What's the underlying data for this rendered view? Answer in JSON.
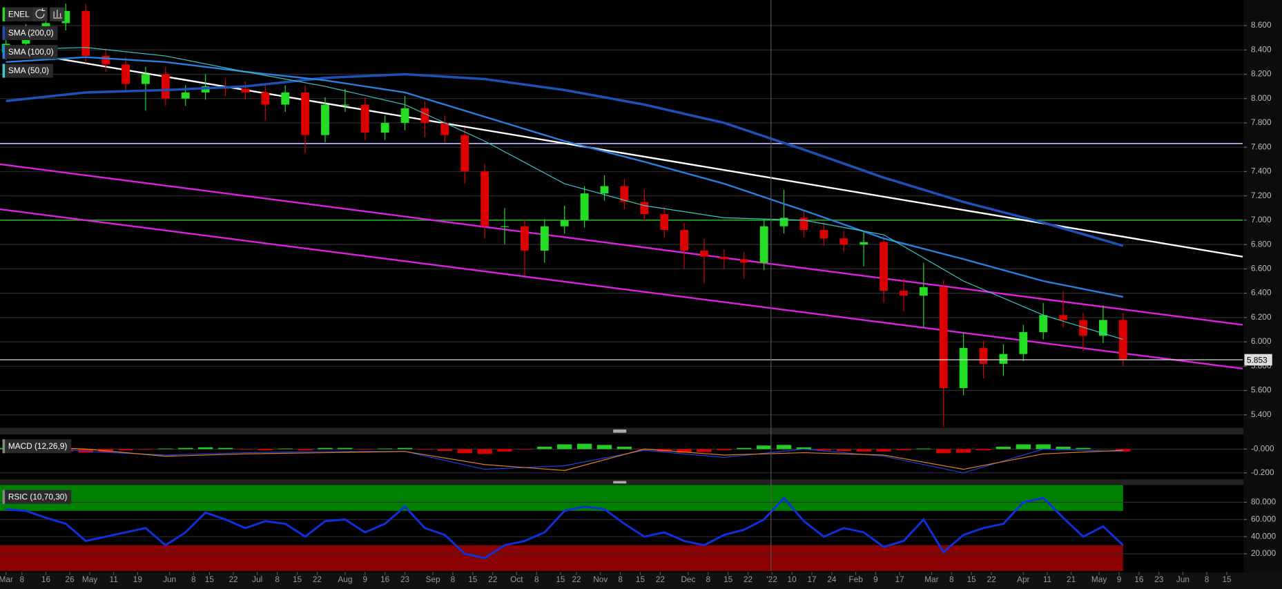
{
  "chart_data": [
    {
      "type": "candlestick",
      "name": "ENEL",
      "up_color": "#22dd22",
      "down_color": "#dd0000",
      "x": [
        0,
        5,
        10,
        15,
        20,
        25,
        30,
        35,
        40,
        45,
        50,
        55,
        60,
        65,
        70,
        75,
        80,
        85,
        90,
        95,
        100,
        105,
        110,
        115,
        120,
        125,
        130,
        135,
        140,
        145,
        150,
        155,
        160,
        165,
        170,
        175,
        180,
        185,
        190,
        195,
        200,
        205,
        210,
        215,
        220,
        225,
        230,
        235,
        240,
        245,
        250,
        255,
        260,
        265,
        270,
        275,
        280
      ],
      "open": [
        8.38,
        8.45,
        8.55,
        8.62,
        8.72,
        8.35,
        8.28,
        8.12,
        8.2,
        8.0,
        8.05,
        8.1,
        8.08,
        8.05,
        7.95,
        8.05,
        7.7,
        7.95,
        7.95,
        7.72,
        7.8,
        7.92,
        7.8,
        7.7,
        7.4,
        6.95,
        6.95,
        6.75,
        6.95,
        7.0,
        7.22,
        7.28,
        7.15,
        7.05,
        6.92,
        6.75,
        6.7,
        6.68,
        6.65,
        6.95,
        7.02,
        6.92,
        6.85,
        6.8,
        6.82,
        6.42,
        6.38,
        6.45,
        5.62,
        5.95,
        5.82,
        5.9,
        6.08,
        6.22,
        6.18,
        6.05,
        6.18
      ],
      "high": [
        8.51,
        8.61,
        8.68,
        8.78,
        8.78,
        8.41,
        8.34,
        8.26,
        8.26,
        8.11,
        8.2,
        8.16,
        8.14,
        8.11,
        8.11,
        8.11,
        8.01,
        8.08,
        8.01,
        7.86,
        8.02,
        7.98,
        7.86,
        7.76,
        7.46,
        7.1,
        7.01,
        7.01,
        7.12,
        7.28,
        7.37,
        7.34,
        7.25,
        7.11,
        6.98,
        6.85,
        6.76,
        6.74,
        7.01,
        7.25,
        7.08,
        6.98,
        6.91,
        6.9,
        6.88,
        6.52,
        6.65,
        6.51,
        6.08,
        6.01,
        5.98,
        6.14,
        6.32,
        6.42,
        6.24,
        6.3,
        6.24
      ],
      "low": [
        8.32,
        8.39,
        8.49,
        8.56,
        8.29,
        8.22,
        8.06,
        7.9,
        7.94,
        7.94,
        7.99,
        8.02,
        7.99,
        7.82,
        7.89,
        7.55,
        7.64,
        7.89,
        7.66,
        7.66,
        7.74,
        7.68,
        7.64,
        7.3,
        6.85,
        6.8,
        6.55,
        6.65,
        6.89,
        6.94,
        7.16,
        7.09,
        6.99,
        6.86,
        6.6,
        6.48,
        6.6,
        6.52,
        6.59,
        6.89,
        6.86,
        6.79,
        6.74,
        6.62,
        6.32,
        6.25,
        6.12,
        5.3,
        5.56,
        5.7,
        5.72,
        5.84,
        6.02,
        6.12,
        5.92,
        5.99,
        5.8
      ],
      "close": [
        8.45,
        8.55,
        8.62,
        8.72,
        8.35,
        8.28,
        8.12,
        8.2,
        8.0,
        8.05,
        8.1,
        8.08,
        8.05,
        7.95,
        8.05,
        7.7,
        7.95,
        7.95,
        7.72,
        7.8,
        7.92,
        7.8,
        7.7,
        7.4,
        6.95,
        6.95,
        6.75,
        6.95,
        7.0,
        7.22,
        7.28,
        7.15,
        7.05,
        6.92,
        6.75,
        6.7,
        6.68,
        6.65,
        6.95,
        7.02,
        6.92,
        6.85,
        6.8,
        6.82,
        6.42,
        6.38,
        6.45,
        5.62,
        5.95,
        5.82,
        5.9,
        6.08,
        6.22,
        6.18,
        6.05,
        6.18,
        5.85
      ],
      "series": [
        {
          "name": "SMA (200,0)",
          "color": "#1e50b8",
          "width": 3,
          "x": [
            0,
            20,
            40,
            60,
            80,
            100,
            120,
            140,
            160,
            180,
            200,
            220,
            240,
            260,
            280
          ],
          "values": [
            7.98,
            8.05,
            8.07,
            8.1,
            8.17,
            8.2,
            8.16,
            8.07,
            7.95,
            7.8,
            7.58,
            7.35,
            7.15,
            6.98,
            6.79
          ]
        },
        {
          "name": "SMA (100,0)",
          "color": "#2a80e0",
          "width": 2,
          "x": [
            0,
            20,
            40,
            60,
            80,
            100,
            120,
            140,
            160,
            180,
            200,
            220,
            240,
            260,
            280
          ],
          "values": [
            8.3,
            8.34,
            8.3,
            8.22,
            8.15,
            8.05,
            7.85,
            7.65,
            7.48,
            7.3,
            7.08,
            6.85,
            6.68,
            6.5,
            6.37
          ]
        },
        {
          "name": "SMA (50,0)",
          "color": "#3cc8c8",
          "width": 1,
          "x": [
            0,
            20,
            40,
            60,
            80,
            100,
            120,
            140,
            160,
            180,
            200,
            220,
            240,
            260,
            280
          ],
          "values": [
            8.4,
            8.42,
            8.35,
            8.22,
            8.1,
            7.95,
            7.65,
            7.3,
            7.12,
            7.02,
            7.0,
            6.88,
            6.5,
            6.22,
            6.02
          ]
        }
      ],
      "trend_lines": [
        {
          "color": "#ffffff",
          "x": [
            10.8,
            310
          ],
          "y": [
            8.34,
            6.7
          ]
        },
        {
          "color": "#e020e0",
          "x": [
            -1.5,
            310
          ],
          "y": [
            7.46,
            6.14
          ]
        },
        {
          "color": "#e020e0",
          "x": [
            -1.5,
            310
          ],
          "y": [
            7.09,
            5.78
          ]
        }
      ],
      "hlines": [
        {
          "value": 7.63,
          "color": "#b0b0ff"
        },
        {
          "value": 7.0,
          "color": "#20a020"
        }
      ],
      "last_price": {
        "value": 5.853,
        "label": "5.853"
      },
      "crosshair_x": 191.75,
      "ylim": [
        5.3,
        8.81
      ],
      "grid": true,
      "yticks": [
        {
          "value": 5.4,
          "label": "5.400"
        },
        {
          "value": 5.6,
          "label": "5.600"
        },
        {
          "value": 5.8,
          "label": "5.800"
        },
        {
          "value": 6.0,
          "label": "6.000"
        },
        {
          "value": 6.2,
          "label": "6.200"
        },
        {
          "value": 6.4,
          "label": "6.400"
        },
        {
          "value": 6.6,
          "label": "6.600"
        },
        {
          "value": 6.8,
          "label": "6.800"
        },
        {
          "value": 7.0,
          "label": "7.000"
        },
        {
          "value": 7.2,
          "label": "7.200"
        },
        {
          "value": 7.4,
          "label": "7.400"
        },
        {
          "value": 7.6,
          "label": "7.600"
        },
        {
          "value": 7.8,
          "label": "7.800"
        },
        {
          "value": 8.0,
          "label": "8.000"
        },
        {
          "value": 8.2,
          "label": "8.200"
        },
        {
          "value": 8.4,
          "label": "8.400"
        },
        {
          "value": 8.6,
          "label": "8.600"
        }
      ]
    },
    {
      "type": "macd",
      "label": "MACD (12,26,9)",
      "up_color": "#22cc22",
      "down_color": "#dd0000",
      "x": [
        0,
        5,
        10,
        15,
        20,
        25,
        30,
        35,
        40,
        45,
        50,
        55,
        60,
        65,
        70,
        75,
        80,
        85,
        90,
        95,
        100,
        105,
        110,
        115,
        120,
        125,
        130,
        135,
        140,
        145,
        150,
        155,
        160,
        165,
        170,
        175,
        180,
        185,
        190,
        195,
        200,
        205,
        210,
        215,
        220,
        225,
        230,
        235,
        240,
        245,
        250,
        255,
        260,
        265,
        270,
        275,
        280
      ],
      "histogram": [
        0.01,
        0.02,
        0.005,
        -0.02,
        -0.03,
        -0.025,
        -0.01,
        -0.005,
        0.005,
        0.01,
        0.015,
        0.01,
        -0.005,
        -0.01,
        0.005,
        -0.01,
        0.01,
        0.01,
        -0.005,
        0.005,
        0.01,
        -0.005,
        -0.015,
        -0.035,
        -0.04,
        -0.02,
        -0.005,
        0.02,
        0.04,
        0.045,
        0.035,
        0.02,
        -0.005,
        -0.02,
        -0.03,
        -0.025,
        -0.01,
        0.01,
        0.03,
        0.035,
        0.015,
        -0.01,
        -0.015,
        -0.02,
        -0.02,
        -0.01,
        0.005,
        -0.035,
        -0.03,
        -0.01,
        0.02,
        0.04,
        0.04,
        0.02,
        0.01,
        0.0,
        -0.02
      ],
      "series": [
        {
          "color": "#2040e0",
          "x": [
            0,
            20,
            40,
            60,
            80,
            100,
            120,
            140,
            160,
            180,
            200,
            220,
            240,
            260,
            280
          ],
          "values": [
            0.05,
            -0.02,
            -0.05,
            -0.03,
            -0.02,
            -0.02,
            -0.17,
            -0.14,
            -0.01,
            -0.07,
            0.0,
            -0.06,
            -0.2,
            0.0,
            -0.02
          ]
        },
        {
          "color": "#e08020",
          "x": [
            0,
            20,
            40,
            60,
            80,
            100,
            120,
            140,
            160,
            180,
            200,
            220,
            240,
            260,
            280
          ],
          "values": [
            0.03,
            0.0,
            -0.06,
            -0.04,
            -0.03,
            -0.02,
            -0.13,
            -0.18,
            0.0,
            -0.05,
            -0.03,
            -0.05,
            -0.17,
            -0.04,
            -0.01
          ]
        }
      ],
      "ylim": [
        -0.248,
        0.117
      ],
      "yticks": [
        {
          "value": 0,
          "label": "-0.000"
        },
        {
          "value": -0.2,
          "label": "-0.200"
        }
      ]
    },
    {
      "type": "line",
      "label": "RSIC (10,70,30)",
      "x": [
        0,
        5,
        10,
        15,
        20,
        25,
        30,
        35,
        40,
        45,
        50,
        55,
        60,
        65,
        70,
        75,
        80,
        85,
        90,
        95,
        100,
        105,
        110,
        115,
        120,
        125,
        130,
        135,
        140,
        145,
        150,
        155,
        160,
        165,
        170,
        175,
        180,
        185,
        190,
        195,
        200,
        205,
        210,
        215,
        220,
        225,
        230,
        235,
        240,
        245,
        250,
        255,
        260,
        265,
        270,
        275,
        280
      ],
      "series": [
        {
          "color": "#1030e0",
          "values": [
            72,
            70,
            62,
            55,
            35,
            40,
            45,
            50,
            30,
            45,
            68,
            60,
            50,
            58,
            55,
            40,
            58,
            60,
            45,
            55,
            75,
            50,
            42,
            20,
            15,
            30,
            35,
            45,
            70,
            75,
            72,
            55,
            40,
            45,
            35,
            30,
            42,
            48,
            60,
            85,
            58,
            40,
            50,
            45,
            28,
            35,
            60,
            22,
            42,
            50,
            55,
            80,
            85,
            62,
            40,
            52,
            30
          ]
        }
      ],
      "zones": [
        {
          "from": 70,
          "to": 100,
          "color": "#008000"
        },
        {
          "from": 0,
          "to": 30,
          "color": "#8b0000"
        }
      ],
      "ylim": [
        0,
        100
      ],
      "yticks": [
        {
          "value": 20,
          "label": "20.000"
        },
        {
          "value": 40,
          "label": "40.000"
        },
        {
          "value": 60,
          "label": "60.000"
        },
        {
          "value": 80,
          "label": "80.000"
        }
      ],
      "xlim": [
        -1.5,
        310
      ],
      "xticks": [
        {
          "value": 0,
          "label": "Mar"
        },
        {
          "value": 4,
          "label": "8"
        },
        {
          "value": 10,
          "label": "16"
        },
        {
          "value": 16,
          "label": "26"
        },
        {
          "value": 21,
          "label": "May"
        },
        {
          "value": 27,
          "label": "11"
        },
        {
          "value": 33,
          "label": "19"
        },
        {
          "value": 41,
          "label": "Jun"
        },
        {
          "value": 47,
          "label": "8"
        },
        {
          "value": 51,
          "label": "15"
        },
        {
          "value": 57,
          "label": "22"
        },
        {
          "value": 63,
          "label": "Jul"
        },
        {
          "value": 68,
          "label": "8"
        },
        {
          "value": 73,
          "label": "15"
        },
        {
          "value": 78,
          "label": "22"
        },
        {
          "value": 85,
          "label": "Aug"
        },
        {
          "value": 90,
          "label": "9"
        },
        {
          "value": 95,
          "label": "16"
        },
        {
          "value": 100,
          "label": "23"
        },
        {
          "value": 107,
          "label": "Sep"
        },
        {
          "value": 112,
          "label": "8"
        },
        {
          "value": 117,
          "label": "15"
        },
        {
          "value": 122,
          "label": "22"
        },
        {
          "value": 128,
          "label": "Oct"
        },
        {
          "value": 133,
          "label": "8"
        },
        {
          "value": 139,
          "label": "15"
        },
        {
          "value": 143,
          "label": "22"
        },
        {
          "value": 149,
          "label": "Nov"
        },
        {
          "value": 154,
          "label": "8"
        },
        {
          "value": 159,
          "label": "15"
        },
        {
          "value": 164,
          "label": "22"
        },
        {
          "value": 171,
          "label": "Dec"
        },
        {
          "value": 176,
          "label": "8"
        },
        {
          "value": 181,
          "label": "15"
        },
        {
          "value": 186,
          "label": "22"
        },
        {
          "value": 192,
          "label": "'22"
        },
        {
          "value": 197,
          "label": "10"
        },
        {
          "value": 202,
          "label": "17"
        },
        {
          "value": 207,
          "label": "24"
        },
        {
          "value": 213,
          "label": "Feb"
        },
        {
          "value": 218,
          "label": "9"
        },
        {
          "value": 224,
          "label": "17"
        },
        {
          "value": 232,
          "label": "Mar"
        },
        {
          "value": 237,
          "label": "8"
        },
        {
          "value": 242,
          "label": "15"
        },
        {
          "value": 247,
          "label": "22"
        },
        {
          "value": 255,
          "label": "Apr"
        },
        {
          "value": 261,
          "label": "11"
        },
        {
          "value": 267,
          "label": "21"
        },
        {
          "value": 274,
          "label": "May"
        },
        {
          "value": 279,
          "label": "9"
        },
        {
          "value": 284,
          "label": "16"
        },
        {
          "value": 289,
          "label": "23"
        },
        {
          "value": 295,
          "label": "Jun"
        },
        {
          "value": 301,
          "label": "8"
        },
        {
          "value": 306,
          "label": "15"
        }
      ]
    }
  ]
}
